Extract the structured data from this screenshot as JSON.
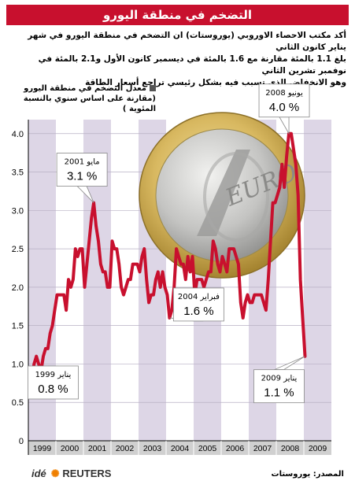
{
  "title": "التضخم في منطقة اليورو",
  "intro": [
    "أكد مكتب الاحصاء الاوروبي (يوروستات) ان التضخم في منطقة اليورو في شهر يناير كانون الثاني",
    "بلغ 1.1 بالمئة مقارنة مع 1.6 بالمئة في ديسمبر كانون الأول و2.1 بالمئة في نوفمبر تشرين الثاني",
    "وهو الانخفاض الذي تسبب فيه بشكل رئيسي تراجع أسعار الطاقة"
  ],
  "legend": {
    "line1": "معدل التضخم في منطقة اليورو",
    "line2": "(مقارنة على اساس سنوي بالنسبة المئوية )",
    "color": "#555555"
  },
  "source": "المصدر: يوروستات",
  "logo": {
    "ide": "idé",
    "reuters": "REUTERS"
  },
  "colors": {
    "title_bg": "#c8102e",
    "line": "#c8102e",
    "band_odd": "#ddd6e6",
    "band_even": "#ffffff",
    "axis_bg": "#d0d0d0"
  },
  "chart_data": {
    "type": "line",
    "ylim": [
      0,
      4.1
    ],
    "yticks": [
      "0",
      "0.5",
      "1.0",
      "1.5",
      "2.0",
      "2.5",
      "3.0",
      "3.5",
      "4.0"
    ],
    "ytick_values": [
      0,
      0.5,
      1.0,
      1.5,
      2.0,
      2.5,
      3.0,
      3.5,
      4.0
    ],
    "xlabels": [
      "1999",
      "2000",
      "2001",
      "2002",
      "2003",
      "2004",
      "2005",
      "2006",
      "2007",
      "2008",
      "2009"
    ],
    "grid": true,
    "series": [
      {
        "start": "1999-01",
        "values": [
          0.8,
          0.8,
          1.0,
          1.1,
          1.0,
          0.9,
          1.1,
          1.2,
          1.2,
          1.4,
          1.5,
          1.7,
          1.9,
          1.9,
          1.9,
          1.9,
          1.7,
          2.1,
          2.0,
          2.1,
          2.5,
          2.4,
          2.5,
          2.5,
          2.0,
          2.3,
          2.6,
          2.9,
          3.1,
          2.8,
          2.6,
          2.3,
          2.2,
          2.2,
          2.0,
          2.0,
          2.6,
          2.5,
          2.5,
          2.3,
          2.0,
          1.9,
          2.0,
          2.1,
          2.1,
          2.3,
          2.3,
          2.3,
          2.2,
          2.4,
          2.5,
          2.1,
          1.8,
          1.9,
          1.9,
          2.1,
          2.2,
          2.0,
          2.2,
          2.0,
          1.9,
          1.6,
          1.7,
          2.0,
          2.5,
          2.4,
          2.3,
          2.3,
          2.1,
          2.4,
          2.2,
          2.4,
          1.9,
          2.1,
          2.1,
          2.1,
          2.0,
          2.1,
          2.2,
          2.2,
          2.6,
          2.5,
          2.3,
          2.2,
          2.4,
          2.3,
          2.2,
          2.5,
          2.5,
          2.5,
          2.4,
          2.3,
          1.8,
          1.6,
          1.8,
          1.9,
          1.8,
          1.8,
          1.9,
          1.9,
          1.9,
          1.9,
          1.8,
          1.7,
          2.1,
          2.6,
          3.1,
          3.1,
          3.2,
          3.3,
          3.6,
          3.3,
          3.7,
          4.0,
          4.0,
          3.8,
          3.6,
          3.2,
          2.1,
          1.6,
          1.1
        ]
      }
    ],
    "callouts": [
      {
        "date": "1999-01",
        "label": "يناير 1999",
        "value": "0.8 %"
      },
      {
        "date": "2001-05",
        "label": "مايو 2001",
        "value": "3.1 %"
      },
      {
        "date": "2004-02",
        "label": "فبراير 2004",
        "value": "1.6 %"
      },
      {
        "date": "2008-06",
        "label": "يونيو 2008",
        "value": "4.0 %"
      },
      {
        "date": "2009-01",
        "label": "يناير 2009",
        "value": "1.1 %"
      }
    ]
  }
}
